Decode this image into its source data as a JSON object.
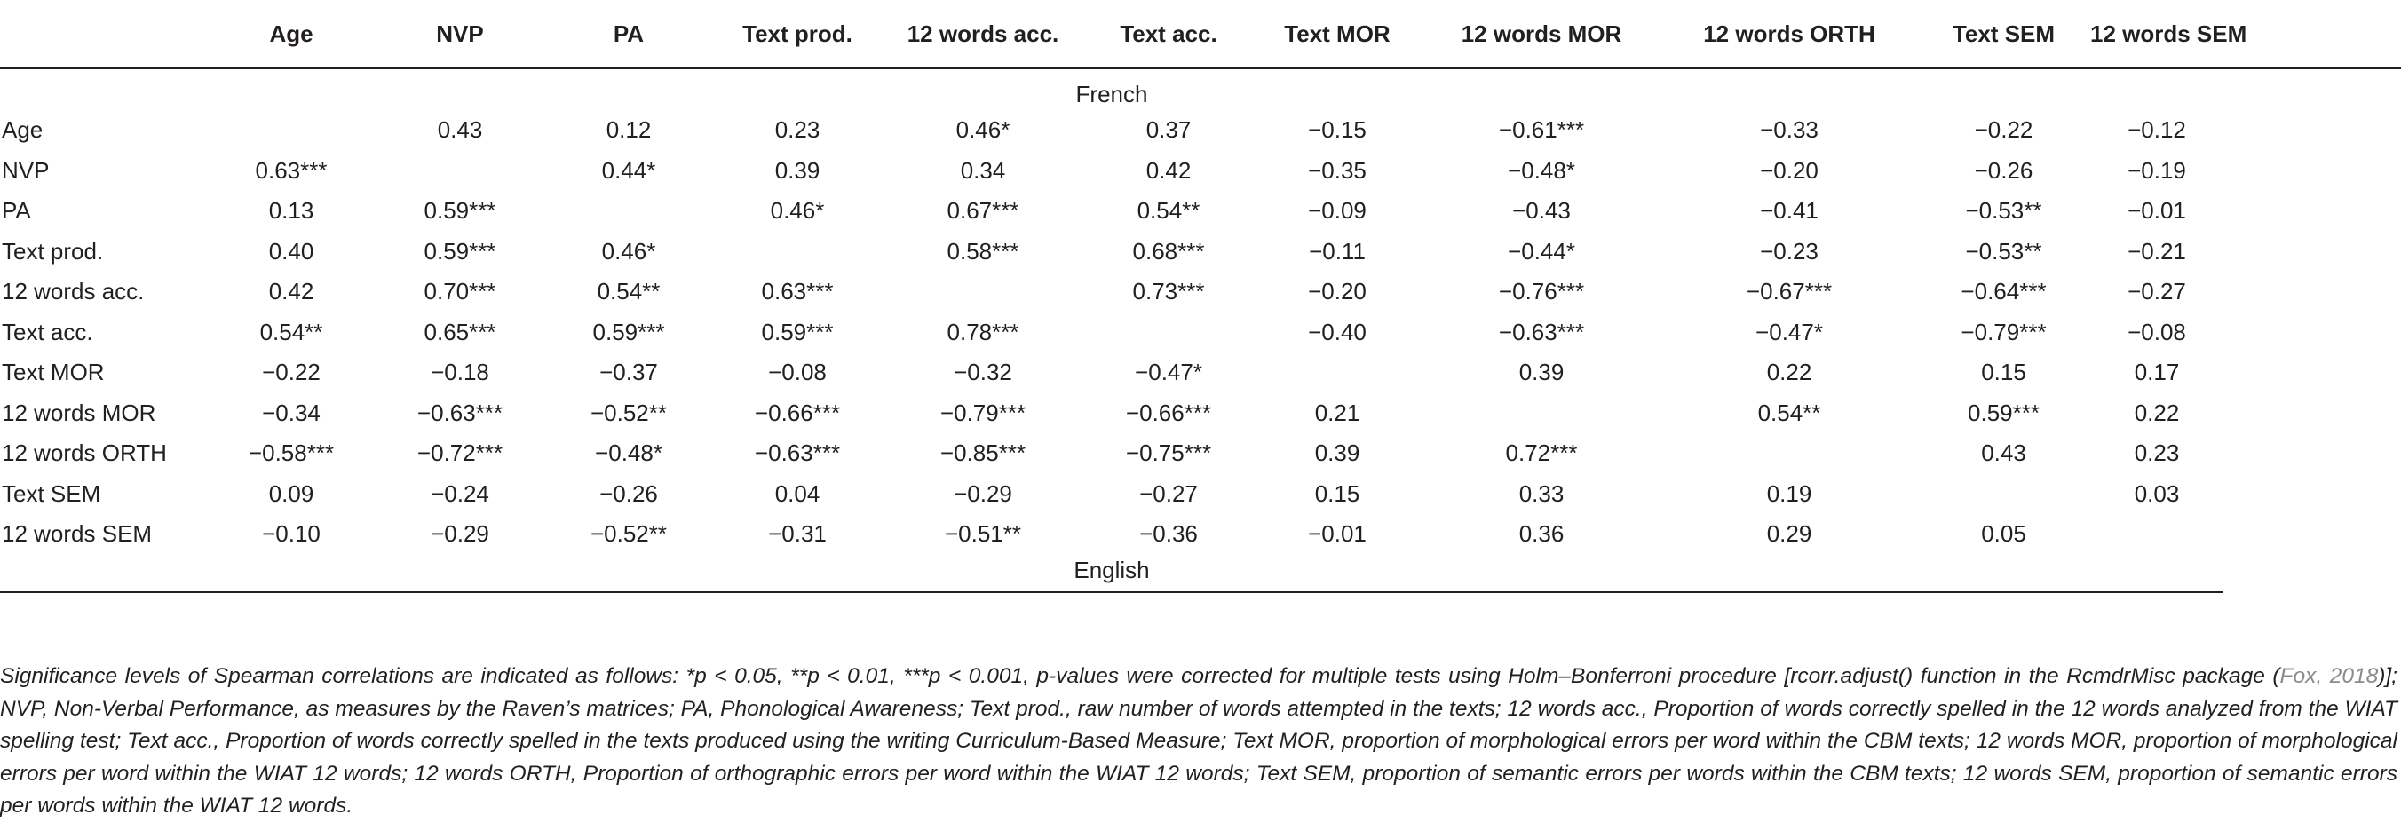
{
  "table": {
    "columns": [
      "Age",
      "NVP",
      "PA",
      "Text prod.",
      "12 words acc.",
      "Text acc.",
      "Text MOR",
      "12 words MOR",
      "12 words ORTH",
      "Text SEM",
      "12 words SEM"
    ],
    "top_language": "French",
    "bottom_language": "English",
    "rows": [
      {
        "label": "Age",
        "cells": [
          "",
          "0.43",
          "0.12",
          "0.23",
          "0.46*",
          "0.37",
          "−0.15",
          "−0.61***",
          "−0.33",
          "−0.22",
          "−0.12"
        ]
      },
      {
        "label": "NVP",
        "cells": [
          "0.63***",
          "",
          "0.44*",
          "0.39",
          "0.34",
          "0.42",
          "−0.35",
          "−0.48*",
          "−0.20",
          "−0.26",
          "−0.19"
        ]
      },
      {
        "label": "PA",
        "cells": [
          "0.13",
          "0.59***",
          "",
          "0.46*",
          "0.67***",
          "0.54**",
          "−0.09",
          "−0.43",
          "−0.41",
          "−0.53**",
          "−0.01"
        ]
      },
      {
        "label": "Text prod.",
        "cells": [
          "0.40",
          "0.59***",
          "0.46*",
          "",
          "0.58***",
          "0.68***",
          "−0.11",
          "−0.44*",
          "−0.23",
          "−0.53**",
          "−0.21"
        ]
      },
      {
        "label": "12 words acc.",
        "cells": [
          "0.42",
          "0.70***",
          "0.54**",
          "0.63***",
          "",
          "0.73***",
          "−0.20",
          "−0.76***",
          "−0.67***",
          "−0.64***",
          "−0.27"
        ]
      },
      {
        "label": "Text acc.",
        "cells": [
          "0.54**",
          "0.65***",
          "0.59***",
          "0.59***",
          "0.78***",
          "",
          "−0.40",
          "−0.63***",
          "−0.47*",
          "−0.79***",
          "−0.08"
        ]
      },
      {
        "label": "Text MOR",
        "cells": [
          "−0.22",
          "−0.18",
          "−0.37",
          "−0.08",
          "−0.32",
          "−0.47*",
          "",
          "0.39",
          "0.22",
          "0.15",
          "0.17"
        ]
      },
      {
        "label": "12 words MOR",
        "cells": [
          "−0.34",
          "−0.63***",
          "−0.52**",
          "−0.66***",
          "−0.79***",
          "−0.66***",
          "0.21",
          "",
          "0.54**",
          "0.59***",
          "0.22"
        ]
      },
      {
        "label": "12 words ORTH",
        "cells": [
          "−0.58***",
          "−0.72***",
          "−0.48*",
          "−0.63***",
          "−0.85***",
          "−0.75***",
          "0.39",
          "0.72***",
          "",
          "0.43",
          "0.23"
        ]
      },
      {
        "label": "Text SEM",
        "cells": [
          "0.09",
          "−0.24",
          "−0.26",
          "0.04",
          "−0.29",
          "−0.27",
          "0.15",
          "0.33",
          "0.19",
          "",
          "0.03"
        ]
      },
      {
        "label": "12 words SEM",
        "cells": [
          "−0.10",
          "−0.29",
          "−0.52**",
          "−0.31",
          "−0.51**",
          "−0.36",
          "−0.01",
          "0.36",
          "0.29",
          "0.05",
          ""
        ]
      }
    ]
  },
  "footnote": {
    "before_cite": "Significance levels of Spearman correlations are indicated as follows: *p < 0.05, **p < 0.01, ***p < 0.001, p-values were corrected for multiple tests using Holm–Bonferroni procedure [rcorr.adjust() function in the RcmdrMisc package (",
    "cite": "Fox, 2018",
    "after_cite": ")]; NVP, Non-Verbal Performance, as measures by the Raven’s matrices; PA, Phonological Awareness; Text prod., raw number of words attempted in the texts; 12 words acc., Proportion of words correctly spelled in the 12 words analyzed from the WIAT spelling test; Text acc., Proportion of words correctly spelled in the texts produced using the writing Curriculum-Based Measure; Text MOR, proportion of morphological errors per word within the CBM texts; 12 words MOR, proportion of morphological errors per word within the WIAT 12 words; 12 words ORTH, Proportion of orthographic errors per word within the WIAT 12 words; Text SEM, proportion of semantic errors per words within the CBM texts; 12 words SEM, proportion of semantic errors per words within the WIAT 12 words."
  }
}
